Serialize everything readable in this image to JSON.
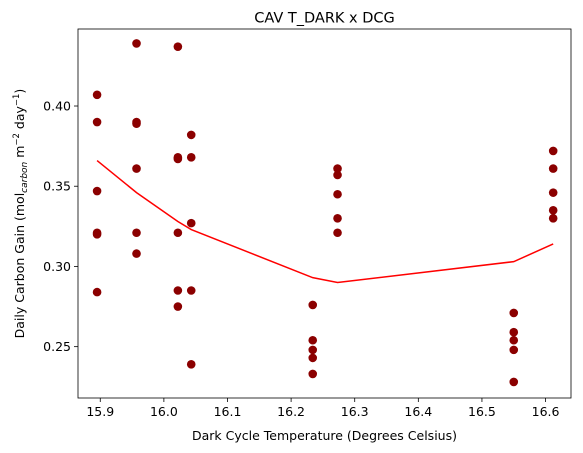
{
  "chart_data": {
    "type": "scatter",
    "title": "CAV T_DARK x DCG",
    "xlabel": "Dark Cycle Temperature (Degrees Celsius)",
    "ylabel": {
      "prefix": "Daily Carbon Gain (mol",
      "subscript": "carbon",
      "middle": " m",
      "sup1": "−2",
      "middle2": " day",
      "sup2": "−1",
      "suffix": ")"
    },
    "xlim": [
      15.865,
      16.64
    ],
    "ylim": [
      0.218,
      0.448
    ],
    "xticks": [
      15.9,
      16.0,
      16.1,
      16.2,
      16.3,
      16.4,
      16.5,
      16.6
    ],
    "xtick_labels": [
      "15.9",
      "16.0",
      "16.1",
      "16.2",
      "16.3",
      "16.4",
      "16.5",
      "16.6"
    ],
    "yticks": [
      0.25,
      0.3,
      0.35,
      0.4
    ],
    "ytick_labels": [
      "0.25",
      "0.30",
      "0.35",
      "0.40"
    ],
    "grid": false,
    "point_color": "#8b0000",
    "line_color": "#ff0000",
    "series": [
      {
        "type": "scatter",
        "points": [
          [
            15.895,
            0.407
          ],
          [
            15.895,
            0.39
          ],
          [
            15.895,
            0.347
          ],
          [
            15.895,
            0.321
          ],
          [
            15.895,
            0.32
          ],
          [
            15.895,
            0.284
          ],
          [
            15.957,
            0.439
          ],
          [
            15.957,
            0.39
          ],
          [
            15.957,
            0.389
          ],
          [
            15.957,
            0.361
          ],
          [
            15.957,
            0.321
          ],
          [
            15.957,
            0.308
          ],
          [
            16.022,
            0.437
          ],
          [
            16.022,
            0.368
          ],
          [
            16.022,
            0.367
          ],
          [
            16.022,
            0.321
          ],
          [
            16.022,
            0.285
          ],
          [
            16.022,
            0.275
          ],
          [
            16.043,
            0.382
          ],
          [
            16.043,
            0.368
          ],
          [
            16.043,
            0.327
          ],
          [
            16.043,
            0.285
          ],
          [
            16.043,
            0.239
          ],
          [
            16.234,
            0.276
          ],
          [
            16.234,
            0.254
          ],
          [
            16.234,
            0.248
          ],
          [
            16.234,
            0.243
          ],
          [
            16.234,
            0.233
          ],
          [
            16.273,
            0.361
          ],
          [
            16.273,
            0.357
          ],
          [
            16.273,
            0.345
          ],
          [
            16.273,
            0.33
          ],
          [
            16.273,
            0.321
          ],
          [
            16.55,
            0.271
          ],
          [
            16.55,
            0.259
          ],
          [
            16.55,
            0.254
          ],
          [
            16.55,
            0.248
          ],
          [
            16.55,
            0.228
          ],
          [
            16.612,
            0.372
          ],
          [
            16.612,
            0.361
          ],
          [
            16.612,
            0.346
          ],
          [
            16.612,
            0.335
          ],
          [
            16.612,
            0.33
          ]
        ]
      },
      {
        "type": "line",
        "points": [
          [
            15.895,
            0.366
          ],
          [
            15.957,
            0.346
          ],
          [
            16.022,
            0.328
          ],
          [
            16.043,
            0.323
          ],
          [
            16.234,
            0.293
          ],
          [
            16.273,
            0.29
          ],
          [
            16.55,
            0.303
          ],
          [
            16.612,
            0.314
          ]
        ]
      }
    ]
  }
}
